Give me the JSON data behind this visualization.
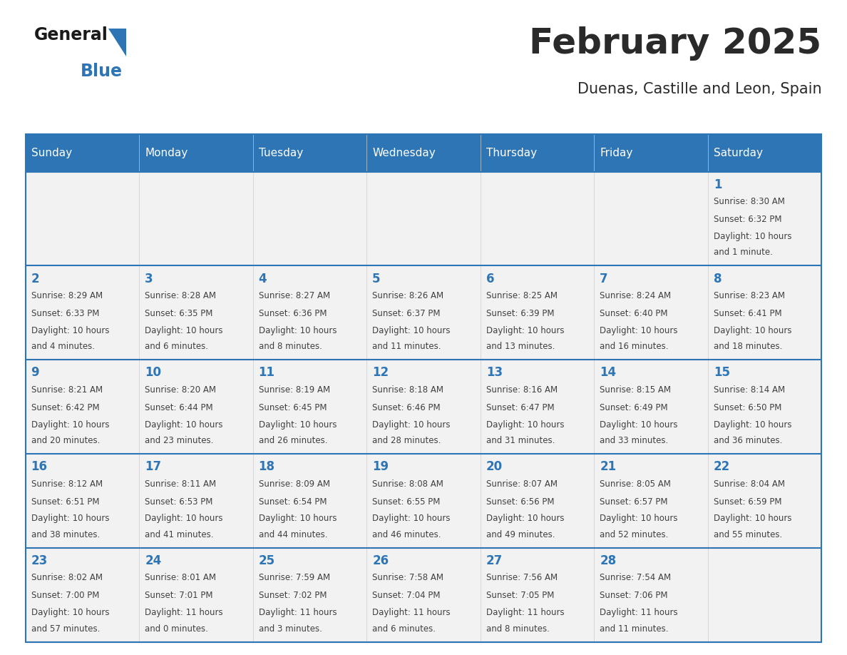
{
  "title": "February 2025",
  "subtitle": "Duenas, Castille and Leon, Spain",
  "header_color": "#2E75B6",
  "header_text_color": "#FFFFFF",
  "cell_bg_color": "#F2F2F2",
  "day_number_color": "#2E75B6",
  "text_color": "#404040",
  "days_of_week": [
    "Sunday",
    "Monday",
    "Tuesday",
    "Wednesday",
    "Thursday",
    "Friday",
    "Saturday"
  ],
  "logo_triangle_color": "#2E75B6",
  "weeks": [
    [
      {
        "day": null,
        "sunrise": null,
        "sunset": null,
        "daylight": null
      },
      {
        "day": null,
        "sunrise": null,
        "sunset": null,
        "daylight": null
      },
      {
        "day": null,
        "sunrise": null,
        "sunset": null,
        "daylight": null
      },
      {
        "day": null,
        "sunrise": null,
        "sunset": null,
        "daylight": null
      },
      {
        "day": null,
        "sunrise": null,
        "sunset": null,
        "daylight": null
      },
      {
        "day": null,
        "sunrise": null,
        "sunset": null,
        "daylight": null
      },
      {
        "day": 1,
        "sunrise": "8:30 AM",
        "sunset": "6:32 PM",
        "daylight": "10 hours\nand 1 minute."
      }
    ],
    [
      {
        "day": 2,
        "sunrise": "8:29 AM",
        "sunset": "6:33 PM",
        "daylight": "10 hours\nand 4 minutes."
      },
      {
        "day": 3,
        "sunrise": "8:28 AM",
        "sunset": "6:35 PM",
        "daylight": "10 hours\nand 6 minutes."
      },
      {
        "day": 4,
        "sunrise": "8:27 AM",
        "sunset": "6:36 PM",
        "daylight": "10 hours\nand 8 minutes."
      },
      {
        "day": 5,
        "sunrise": "8:26 AM",
        "sunset": "6:37 PM",
        "daylight": "10 hours\nand 11 minutes."
      },
      {
        "day": 6,
        "sunrise": "8:25 AM",
        "sunset": "6:39 PM",
        "daylight": "10 hours\nand 13 minutes."
      },
      {
        "day": 7,
        "sunrise": "8:24 AM",
        "sunset": "6:40 PM",
        "daylight": "10 hours\nand 16 minutes."
      },
      {
        "day": 8,
        "sunrise": "8:23 AM",
        "sunset": "6:41 PM",
        "daylight": "10 hours\nand 18 minutes."
      }
    ],
    [
      {
        "day": 9,
        "sunrise": "8:21 AM",
        "sunset": "6:42 PM",
        "daylight": "10 hours\nand 20 minutes."
      },
      {
        "day": 10,
        "sunrise": "8:20 AM",
        "sunset": "6:44 PM",
        "daylight": "10 hours\nand 23 minutes."
      },
      {
        "day": 11,
        "sunrise": "8:19 AM",
        "sunset": "6:45 PM",
        "daylight": "10 hours\nand 26 minutes."
      },
      {
        "day": 12,
        "sunrise": "8:18 AM",
        "sunset": "6:46 PM",
        "daylight": "10 hours\nand 28 minutes."
      },
      {
        "day": 13,
        "sunrise": "8:16 AM",
        "sunset": "6:47 PM",
        "daylight": "10 hours\nand 31 minutes."
      },
      {
        "day": 14,
        "sunrise": "8:15 AM",
        "sunset": "6:49 PM",
        "daylight": "10 hours\nand 33 minutes."
      },
      {
        "day": 15,
        "sunrise": "8:14 AM",
        "sunset": "6:50 PM",
        "daylight": "10 hours\nand 36 minutes."
      }
    ],
    [
      {
        "day": 16,
        "sunrise": "8:12 AM",
        "sunset": "6:51 PM",
        "daylight": "10 hours\nand 38 minutes."
      },
      {
        "day": 17,
        "sunrise": "8:11 AM",
        "sunset": "6:53 PM",
        "daylight": "10 hours\nand 41 minutes."
      },
      {
        "day": 18,
        "sunrise": "8:09 AM",
        "sunset": "6:54 PM",
        "daylight": "10 hours\nand 44 minutes."
      },
      {
        "day": 19,
        "sunrise": "8:08 AM",
        "sunset": "6:55 PM",
        "daylight": "10 hours\nand 46 minutes."
      },
      {
        "day": 20,
        "sunrise": "8:07 AM",
        "sunset": "6:56 PM",
        "daylight": "10 hours\nand 49 minutes."
      },
      {
        "day": 21,
        "sunrise": "8:05 AM",
        "sunset": "6:57 PM",
        "daylight": "10 hours\nand 52 minutes."
      },
      {
        "day": 22,
        "sunrise": "8:04 AM",
        "sunset": "6:59 PM",
        "daylight": "10 hours\nand 55 minutes."
      }
    ],
    [
      {
        "day": 23,
        "sunrise": "8:02 AM",
        "sunset": "7:00 PM",
        "daylight": "10 hours\nand 57 minutes."
      },
      {
        "day": 24,
        "sunrise": "8:01 AM",
        "sunset": "7:01 PM",
        "daylight": "11 hours\nand 0 minutes."
      },
      {
        "day": 25,
        "sunrise": "7:59 AM",
        "sunset": "7:02 PM",
        "daylight": "11 hours\nand 3 minutes."
      },
      {
        "day": 26,
        "sunrise": "7:58 AM",
        "sunset": "7:04 PM",
        "daylight": "11 hours\nand 6 minutes."
      },
      {
        "day": 27,
        "sunrise": "7:56 AM",
        "sunset": "7:05 PM",
        "daylight": "11 hours\nand 8 minutes."
      },
      {
        "day": 28,
        "sunrise": "7:54 AM",
        "sunset": "7:06 PM",
        "daylight": "11 hours\nand 11 minutes."
      },
      {
        "day": null,
        "sunrise": null,
        "sunset": null,
        "daylight": null
      }
    ]
  ]
}
